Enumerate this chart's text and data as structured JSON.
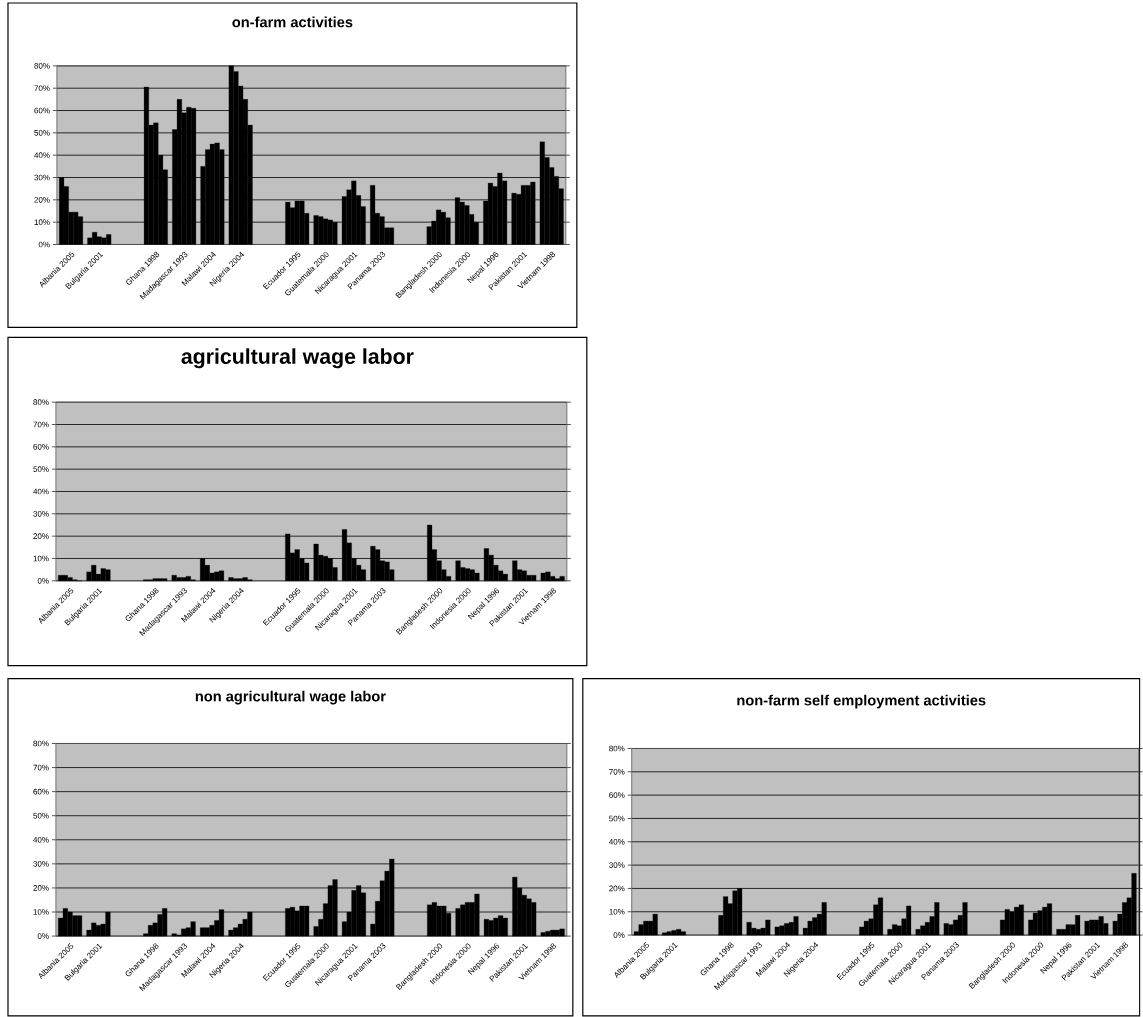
{
  "chart_data": [
    {
      "type": "bar",
      "title": "on-farm activities",
      "categories": [
        "Albania 2005",
        "Bulgaria 2001",
        null,
        "Ghana 1998",
        "Madagascar 1993",
        "Malawi 2004",
        "Nigeria 2004",
        null,
        "Ecuador 1995",
        "Guatemala 2000",
        "Nicaragua 2001",
        "Panama 2003",
        null,
        "Bangladesh 2000",
        "Indonesia 2000",
        "Nepal 1996",
        "Pakistan 2001",
        "Vietnam 1998"
      ],
      "series": [
        {
          "color": "#000000",
          "values": [
            30,
            3,
            null,
            70.5,
            51.5,
            35,
            80,
            null,
            19,
            13,
            21.5,
            26.5,
            null,
            8,
            21,
            19.5,
            23,
            46
          ]
        },
        {
          "color": "#000000",
          "values": [
            26,
            5.5,
            null,
            53.5,
            65,
            42.5,
            77.5,
            null,
            16.5,
            12.5,
            24.5,
            14,
            null,
            10.5,
            19,
            27.5,
            22.5,
            39
          ]
        },
        {
          "color": "#000000",
          "values": [
            14.5,
            3.5,
            null,
            54.5,
            59,
            45,
            71,
            null,
            19.5,
            11.5,
            28.5,
            12.5,
            null,
            15.5,
            17.5,
            26,
            26.5,
            34.5
          ]
        },
        {
          "color": "#000000",
          "values": [
            14.5,
            3,
            null,
            40,
            61.5,
            45.5,
            65,
            null,
            19.5,
            11,
            22,
            7.5,
            null,
            14.5,
            13.5,
            32,
            26.5,
            30.5
          ]
        },
        {
          "color": "#000000",
          "values": [
            12.5,
            4.5,
            null,
            33.5,
            61,
            42.5,
            53.5,
            null,
            14,
            10,
            17,
            7.5,
            null,
            12,
            10,
            28.5,
            28,
            25
          ]
        }
      ],
      "ylim": [
        0,
        80
      ],
      "yticks": [
        {
          "value": 0,
          "label": "0%"
        },
        {
          "value": 10,
          "label": "10%"
        },
        {
          "value": 20,
          "label": "20%"
        },
        {
          "value": 30,
          "label": "30%"
        },
        {
          "value": 40,
          "label": "40%"
        },
        {
          "value": 50,
          "label": "50%"
        },
        {
          "value": 60,
          "label": "60%"
        },
        {
          "value": 70,
          "label": "70%"
        },
        {
          "value": 80,
          "label": "80%"
        }
      ],
      "grid": "y"
    },
    {
      "type": "bar",
      "title": "agricultural wage labor",
      "categories": [
        "Albania 2005",
        "Bulgaria 2001",
        null,
        "Ghana 1998",
        "Madagascar 1993",
        "Malawi 2004",
        "Nigeria 2004",
        null,
        "Ecuador 1995",
        "Guatemala 2000",
        "Nicaragua 2001",
        "Panama 2003",
        null,
        "Bangladesh 2000",
        "Indonesia 2000",
        "Nepal 1996",
        "Pakistan 2001",
        "Vietnam 1998"
      ],
      "series": [
        {
          "color": "#000000",
          "values": [
            2.5,
            4,
            null,
            0.5,
            2.5,
            10,
            1.5,
            null,
            21,
            16.5,
            23,
            15.5,
            null,
            25,
            9,
            14.5,
            9,
            3.5
          ]
        },
        {
          "color": "#000000",
          "values": [
            2.5,
            7,
            null,
            0.5,
            1.5,
            7,
            1,
            null,
            12.5,
            11.5,
            17,
            14,
            null,
            14,
            6,
            11.5,
            5,
            4
          ]
        },
        {
          "color": "#000000",
          "values": [
            1.5,
            3,
            null,
            1,
            1.5,
            3.5,
            1,
            null,
            14,
            11,
            10,
            9,
            null,
            9,
            5.5,
            7,
            4.5,
            2
          ]
        },
        {
          "color": "#000000",
          "values": [
            0.5,
            5.5,
            null,
            1,
            2,
            4,
            1.5,
            null,
            10,
            10,
            7,
            8.5,
            null,
            5,
            5,
            4.5,
            2.5,
            1
          ]
        },
        {
          "color": "#000000",
          "values": [
            0,
            5,
            null,
            1,
            0.5,
            4.5,
            0.5,
            null,
            8,
            6,
            5,
            5,
            null,
            2,
            3.5,
            3,
            2.5,
            2
          ]
        }
      ],
      "ylim": [
        0,
        80
      ],
      "yticks": [
        {
          "value": 0,
          "label": "0%"
        },
        {
          "value": 10,
          "label": "10%"
        },
        {
          "value": 20,
          "label": "20%"
        },
        {
          "value": 30,
          "label": "30%"
        },
        {
          "value": 40,
          "label": "40%"
        },
        {
          "value": 50,
          "label": "50%"
        },
        {
          "value": 60,
          "label": "60%"
        },
        {
          "value": 70,
          "label": "70%"
        },
        {
          "value": 80,
          "label": "80%"
        }
      ],
      "grid": "y"
    },
    {
      "type": "bar",
      "title": "non agricultural wage labor",
      "categories": [
        "Albania 2005",
        "Bulgaria 2001",
        null,
        "Ghana 1998",
        "Madagascar 1993",
        "Malawi 2004",
        "Nigeria 2004",
        null,
        "Ecuador 1995",
        "Guatemala 2000",
        "Nicaragua 2001",
        "Panama 2003",
        null,
        "Bangladesh 2000",
        "Indonesia 2000",
        "Nepal 1996",
        "Pakistan 2001",
        "Vietnam 1998"
      ],
      "series": [
        {
          "color": "#000000",
          "values": [
            7.5,
            2.5,
            null,
            1,
            1,
            3.5,
            2.5,
            null,
            11.5,
            4,
            6,
            5,
            null,
            13,
            11.5,
            7,
            24.5,
            1.5
          ]
        },
        {
          "color": "#000000",
          "values": [
            11.5,
            5.5,
            null,
            4.5,
            0.5,
            3.5,
            3.5,
            null,
            12,
            7,
            10,
            14.5,
            null,
            14,
            13,
            6.5,
            20,
            2
          ]
        },
        {
          "color": "#000000",
          "values": [
            10,
            4.5,
            null,
            5.5,
            3,
            4.5,
            5,
            null,
            10.5,
            13.5,
            19,
            23,
            null,
            12.5,
            14,
            7.5,
            17,
            2.5
          ]
        },
        {
          "color": "#000000",
          "values": [
            8.5,
            5,
            null,
            9,
            3.5,
            6.5,
            7,
            null,
            12.5,
            21,
            21,
            27,
            null,
            12.5,
            14,
            8.5,
            15.5,
            2.5
          ]
        },
        {
          "color": "#000000",
          "values": [
            8.5,
            10,
            null,
            11.5,
            6,
            11,
            10,
            null,
            12.5,
            23.5,
            18,
            32,
            null,
            9.5,
            17.5,
            7.5,
            14,
            3
          ]
        }
      ],
      "ylim": [
        0,
        80
      ],
      "yticks": [
        {
          "value": 0,
          "label": "0%"
        },
        {
          "value": 10,
          "label": "10%"
        },
        {
          "value": 20,
          "label": "20%"
        },
        {
          "value": 30,
          "label": "30%"
        },
        {
          "value": 40,
          "label": "40%"
        },
        {
          "value": 50,
          "label": "50%"
        },
        {
          "value": 60,
          "label": "60%"
        },
        {
          "value": 70,
          "label": "70%"
        },
        {
          "value": 80,
          "label": "80%"
        }
      ],
      "grid": "y"
    },
    {
      "type": "bar",
      "title": "non-farm self employment activities",
      "categories": [
        "Albania 2005",
        "Bulgaria 2001",
        null,
        "Ghana 1998",
        "Madagascar 1993",
        "Malawi 2004",
        "Nigeria 2004",
        null,
        "Ecuador 1995",
        "Guatemala 2000",
        "Nicaragua 2001",
        "Panama 2003",
        null,
        "Bangladesh 2000",
        "Indonesia 2000",
        "Nepal 1996",
        "Pakistan 2001",
        "Vietnam 1998"
      ],
      "series": [
        {
          "color": "#000000",
          "values": [
            1.5,
            1,
            null,
            8.5,
            5.5,
            3.5,
            3,
            null,
            3.5,
            2.5,
            2.5,
            5,
            null,
            6.5,
            6.5,
            2.5,
            6,
            6
          ]
        },
        {
          "color": "#000000",
          "values": [
            4.5,
            1.5,
            null,
            16.5,
            3,
            4,
            6,
            null,
            6,
            4.5,
            4,
            4.5,
            null,
            11,
            9.5,
            2.5,
            6.5,
            9
          ]
        },
        {
          "color": "#000000",
          "values": [
            6,
            2,
            null,
            13.5,
            2.5,
            5,
            7.5,
            null,
            7,
            4,
            5.5,
            6.5,
            null,
            10,
            10.5,
            4.5,
            6.5,
            14
          ]
        },
        {
          "color": "#000000",
          "values": [
            6,
            2.5,
            null,
            19,
            3,
            5.5,
            9,
            null,
            13,
            7,
            8,
            8.5,
            null,
            12,
            12,
            4.5,
            8,
            16
          ]
        },
        {
          "color": "#000000",
          "values": [
            9,
            1.5,
            null,
            20,
            6.5,
            8,
            14,
            null,
            16,
            12.5,
            14,
            14,
            null,
            13,
            13.5,
            8.5,
            5,
            26.5
          ]
        }
      ],
      "ylim": [
        0,
        80
      ],
      "yticks": [
        {
          "value": 0,
          "label": "0%"
        },
        {
          "value": 10,
          "label": "10%"
        },
        {
          "value": 20,
          "label": "20%"
        },
        {
          "value": 30,
          "label": "30%"
        },
        {
          "value": 40,
          "label": "40%"
        },
        {
          "value": 50,
          "label": "50%"
        },
        {
          "value": 60,
          "label": "60%"
        },
        {
          "value": 70,
          "label": "70%"
        },
        {
          "value": 80,
          "label": "80%"
        }
      ],
      "grid": "y"
    }
  ]
}
